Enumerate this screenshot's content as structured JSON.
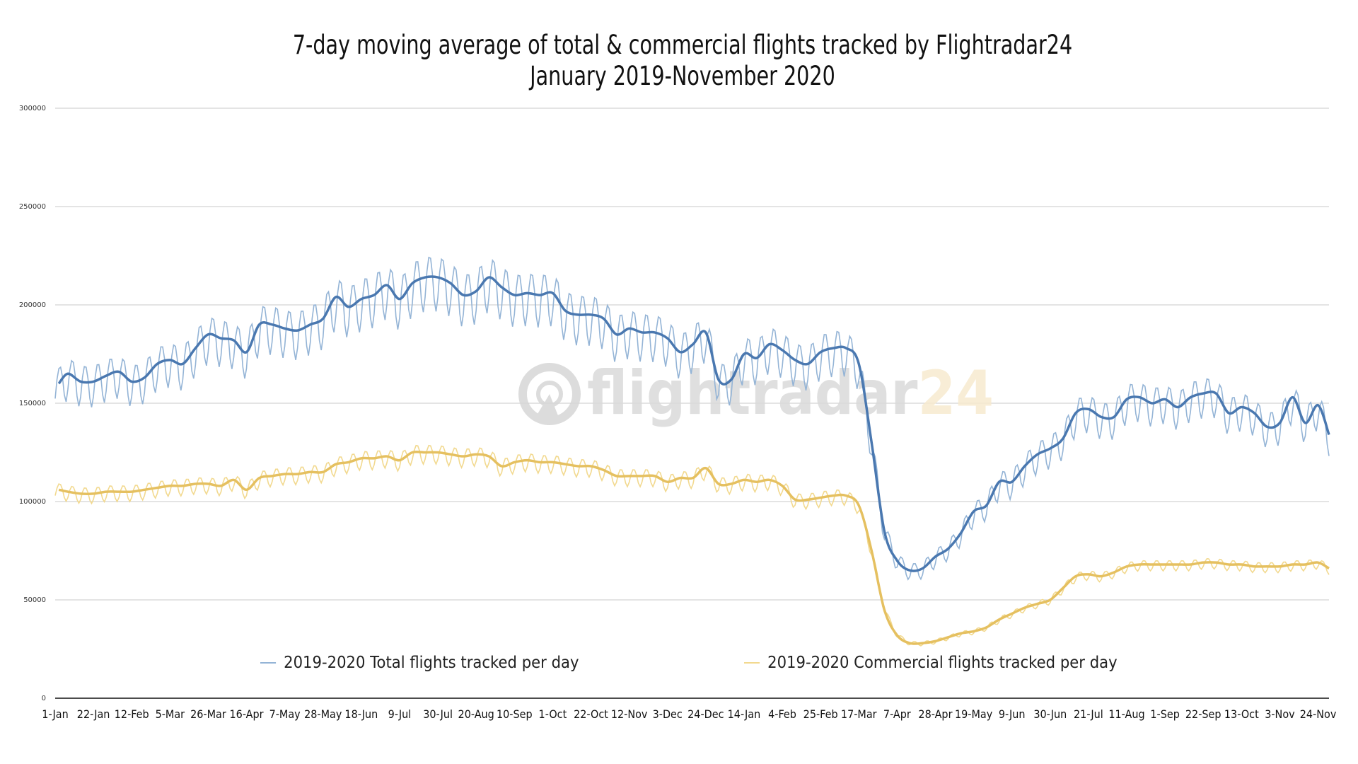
{
  "chart_data": {
    "type": "line",
    "title": "7-day moving average of total & commercial flights tracked by Flightradar24",
    "subtitle": "January 2019-November 2020",
    "xlabel": "",
    "ylabel": "",
    "xlim": [
      "2019-01-01",
      "2020-11-30"
    ],
    "ylim": [
      0,
      300000
    ],
    "yticks": [
      0,
      50000,
      100000,
      150000,
      200000,
      250000,
      300000
    ],
    "xticks": [
      {
        "date": "2019-01-01",
        "label": "1-Jan"
      },
      {
        "date": "2019-01-22",
        "label": "22-Jan"
      },
      {
        "date": "2019-02-12",
        "label": "12-Feb"
      },
      {
        "date": "2019-03-05",
        "label": "5-Mar"
      },
      {
        "date": "2019-03-26",
        "label": "26-Mar"
      },
      {
        "date": "2019-04-16",
        "label": "16-Apr"
      },
      {
        "date": "2019-05-07",
        "label": "7-May"
      },
      {
        "date": "2019-05-28",
        "label": "28-May"
      },
      {
        "date": "2019-06-18",
        "label": "18-Jun"
      },
      {
        "date": "2019-07-09",
        "label": "9-Jul"
      },
      {
        "date": "2019-07-30",
        "label": "30-Jul"
      },
      {
        "date": "2019-08-20",
        "label": "20-Aug"
      },
      {
        "date": "2019-09-10",
        "label": "10-Sep"
      },
      {
        "date": "2019-10-01",
        "label": "1-Oct"
      },
      {
        "date": "2019-10-22",
        "label": "22-Oct"
      },
      {
        "date": "2019-11-12",
        "label": "12-Nov"
      },
      {
        "date": "2019-12-03",
        "label": "3-Dec"
      },
      {
        "date": "2019-12-24",
        "label": "24-Dec"
      },
      {
        "date": "2020-01-14",
        "label": "14-Jan"
      },
      {
        "date": "2020-02-04",
        "label": "4-Feb"
      },
      {
        "date": "2020-02-25",
        "label": "25-Feb"
      },
      {
        "date": "2020-03-17",
        "label": "17-Mar"
      },
      {
        "date": "2020-04-07",
        "label": "7-Apr"
      },
      {
        "date": "2020-04-28",
        "label": "28-Apr"
      },
      {
        "date": "2020-05-19",
        "label": "19-May"
      },
      {
        "date": "2020-06-09",
        "label": "9-Jun"
      },
      {
        "date": "2020-06-30",
        "label": "30-Jun"
      },
      {
        "date": "2020-07-21",
        "label": "21-Jul"
      },
      {
        "date": "2020-08-11",
        "label": "11-Aug"
      },
      {
        "date": "2020-09-01",
        "label": "1-Sep"
      },
      {
        "date": "2020-09-22",
        "label": "22-Sep"
      },
      {
        "date": "2020-10-13",
        "label": "13-Oct"
      },
      {
        "date": "2020-11-03",
        "label": "3-Nov"
      },
      {
        "date": "2020-11-24",
        "label": "24-Nov"
      }
    ],
    "grid": true,
    "legend_position": "bottom",
    "watermark": "flightradar24",
    "x": [
      "2019-01-03",
      "2019-01-08",
      "2019-01-15",
      "2019-01-22",
      "2019-01-29",
      "2019-02-05",
      "2019-02-12",
      "2019-02-19",
      "2019-02-26",
      "2019-03-05",
      "2019-03-12",
      "2019-03-19",
      "2019-03-26",
      "2019-04-02",
      "2019-04-09",
      "2019-04-16",
      "2019-04-23",
      "2019-04-30",
      "2019-05-07",
      "2019-05-14",
      "2019-05-21",
      "2019-05-28",
      "2019-06-04",
      "2019-06-11",
      "2019-06-18",
      "2019-06-25",
      "2019-07-02",
      "2019-07-09",
      "2019-07-16",
      "2019-07-23",
      "2019-07-30",
      "2019-08-06",
      "2019-08-13",
      "2019-08-20",
      "2019-08-27",
      "2019-09-03",
      "2019-09-10",
      "2019-09-17",
      "2019-09-24",
      "2019-10-01",
      "2019-10-08",
      "2019-10-15",
      "2019-10-22",
      "2019-10-29",
      "2019-11-05",
      "2019-11-12",
      "2019-11-19",
      "2019-11-26",
      "2019-12-03",
      "2019-12-10",
      "2019-12-17",
      "2019-12-24",
      "2019-12-31",
      "2020-01-07",
      "2020-01-14",
      "2020-01-21",
      "2020-01-28",
      "2020-02-04",
      "2020-02-11",
      "2020-02-18",
      "2020-02-25",
      "2020-03-03",
      "2020-03-10",
      "2020-03-17",
      "2020-03-24",
      "2020-03-31",
      "2020-04-07",
      "2020-04-14",
      "2020-04-21",
      "2020-04-28",
      "2020-05-05",
      "2020-05-12",
      "2020-05-19",
      "2020-05-26",
      "2020-06-02",
      "2020-06-09",
      "2020-06-16",
      "2020-06-23",
      "2020-06-30",
      "2020-07-07",
      "2020-07-14",
      "2020-07-21",
      "2020-07-28",
      "2020-08-04",
      "2020-08-11",
      "2020-08-18",
      "2020-08-25",
      "2020-09-01",
      "2020-09-08",
      "2020-09-15",
      "2020-09-22",
      "2020-09-29",
      "2020-10-06",
      "2020-10-13",
      "2020-10-20",
      "2020-10-27",
      "2020-11-03",
      "2020-11-10",
      "2020-11-17",
      "2020-11-24",
      "2020-11-30"
    ],
    "series": [
      {
        "name": "2019-2020 Total flights tracked per day",
        "color": "#4a78b0",
        "daily_color": "#94b4d6",
        "daily_swing": 14000,
        "values": [
          160000,
          165000,
          161000,
          161000,
          164000,
          166000,
          161000,
          163000,
          170000,
          172000,
          170000,
          178000,
          185000,
          183000,
          182000,
          176000,
          190000,
          190000,
          188000,
          187000,
          190000,
          193000,
          204000,
          199000,
          203000,
          205000,
          210000,
          203000,
          211000,
          214000,
          214000,
          211000,
          205000,
          207000,
          214000,
          209000,
          205000,
          206000,
          205000,
          206000,
          197000,
          195000,
          195000,
          193000,
          185000,
          188000,
          186000,
          186000,
          183000,
          176000,
          180000,
          186000,
          162000,
          162000,
          175000,
          173000,
          180000,
          177000,
          172000,
          170000,
          176000,
          178000,
          178000,
          170000,
          130000,
          85000,
          70000,
          65000,
          66000,
          72000,
          76000,
          84000,
          95000,
          98000,
          110000,
          110000,
          118000,
          124000,
          127000,
          132000,
          145000,
          147000,
          143000,
          143000,
          152000,
          153000,
          150000,
          152000,
          148000,
          153000,
          155000,
          155000,
          145000,
          148000,
          145000,
          138000,
          140000,
          153000,
          140000,
          149000,
          134000
        ]
      },
      {
        "name": "2019-2020 Commercial flights tracked per day",
        "color": "#e5c060",
        "daily_color": "#f2d98f",
        "daily_swing": 5000,
        "values": [
          106000,
          105000,
          104000,
          104000,
          105000,
          105000,
          105000,
          106000,
          107000,
          108000,
          108000,
          109000,
          109000,
          108000,
          111000,
          106000,
          112000,
          113000,
          114000,
          114000,
          115000,
          115000,
          119000,
          120000,
          122000,
          122000,
          123000,
          121000,
          125000,
          125000,
          125000,
          124000,
          123000,
          124000,
          123000,
          118000,
          120000,
          121000,
          120000,
          120000,
          119000,
          118000,
          118000,
          116000,
          113000,
          113000,
          113000,
          113000,
          110000,
          112000,
          112000,
          117000,
          109000,
          109000,
          111000,
          110000,
          111000,
          108000,
          101000,
          101000,
          102000,
          103000,
          103000,
          98000,
          75000,
          45000,
          32000,
          28000,
          28000,
          29000,
          31000,
          33000,
          34000,
          36000,
          40000,
          43000,
          46000,
          48000,
          50000,
          56000,
          62000,
          63000,
          62000,
          64000,
          67000,
          68000,
          68000,
          68000,
          68000,
          68000,
          69000,
          69000,
          68000,
          68000,
          67000,
          67000,
          67000,
          68000,
          68000,
          69000,
          66000
        ]
      }
    ]
  }
}
